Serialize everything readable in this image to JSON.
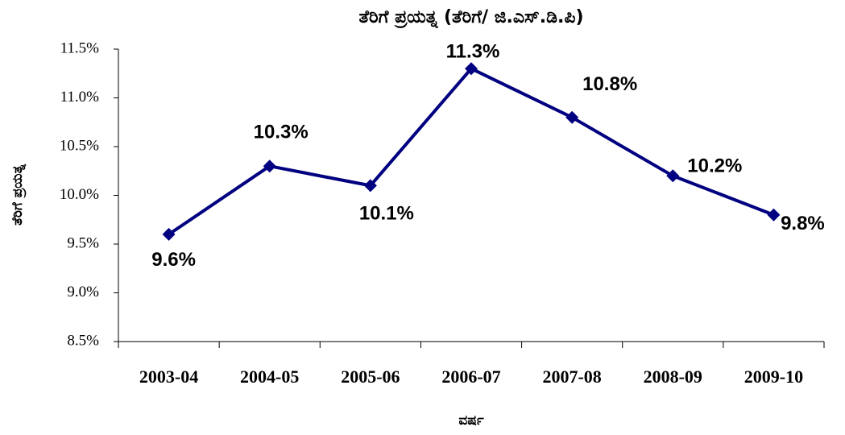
{
  "chart_data": {
    "type": "line",
    "title": "ತೆರಿಗೆ ಪ್ರಯತ್ನ (ತೆರಿಗೆ/ ಜಿ.ಎಸ್.ಡಿ.ಪಿ)",
    "x_label": "ವರ್ಷ",
    "y_label": "ತೆರಿಗೆ ಪ್ರಯತ್ನ",
    "categories": [
      "2003-04",
      "2004-05",
      "2005-06",
      "2006-07",
      "2007-08",
      "2008-09",
      "2009-10"
    ],
    "values": [
      9.6,
      10.3,
      10.1,
      11.3,
      10.8,
      10.2,
      9.8
    ],
    "value_labels": [
      "9.6%",
      "10.3%",
      "10.1%",
      "11.3%",
      "10.8%",
      "10.2%",
      "9.8%"
    ],
    "color": "#000080",
    "ylim": [
      8.5,
      11.5
    ],
    "yticks": [
      {
        "value": 8.5,
        "label": "8.5%"
      },
      {
        "value": 9.0,
        "label": "9.0%"
      },
      {
        "value": 9.5,
        "label": "9.5%"
      },
      {
        "value": 10.0,
        "label": "10.0%"
      },
      {
        "value": 10.5,
        "label": "10.5%"
      },
      {
        "value": 11.0,
        "label": "11.0%"
      },
      {
        "value": 11.5,
        "label": "11.5%"
      }
    ],
    "grid": false
  }
}
